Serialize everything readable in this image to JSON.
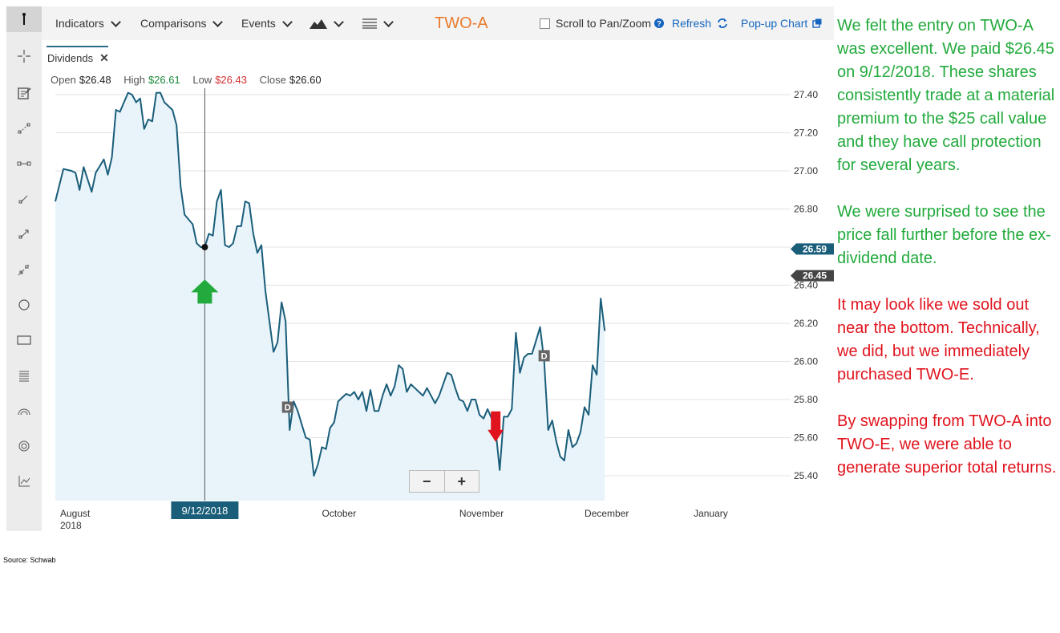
{
  "toolbar": {
    "indicators": "Indicators",
    "comparisons": "Comparisons",
    "events": "Events",
    "ticker": "TWO-A",
    "scroll_label": "Scroll to Pan/Zoom",
    "refresh": "Refresh",
    "popup": "Pop-up Chart"
  },
  "tab": {
    "label": "Dividends",
    "close": "✕"
  },
  "ohlc": {
    "open_label": "Open",
    "open": "$26.48",
    "high_label": "High",
    "high": "$26.61",
    "low_label": "Low",
    "low": "$26.43",
    "close_label": "Close",
    "close": "$26.60"
  },
  "zoom": {
    "minus": "−",
    "plus": "+"
  },
  "commentary": {
    "p1": "We felt the entry on TWO-A was excellent. We paid $26.45 on 9/12/2018. These shares consistently trade at a material premium to the $25 call value and they have call protection for several years.",
    "p2": "We were surprised to see the price fall further before the ex-dividend date.",
    "p3": "It may look like we sold out near the bottom. Technically, we did, but we immediately purchased TWO-E.",
    "p4": "By swapping from TWO-A into TWO-E, we were able to generate superior total returns."
  },
  "source": "Source: Schwab",
  "colors": {
    "line": "#1a5e7a",
    "fill": "#e8f4fa",
    "buy_arrow": "#22aa3c",
    "sell_arrow": "#e0141e",
    "ticker": "#e97b2c"
  },
  "chart_data": {
    "type": "area",
    "ylim": [
      25.25,
      27.5
    ],
    "yticks": [
      27.4,
      27.2,
      27.0,
      26.8,
      26.6,
      26.4,
      26.2,
      26.0,
      25.8,
      25.6,
      25.4
    ],
    "ytick_labels": [
      "27.40",
      "27.20",
      "27.00",
      "26.80",
      "",
      "26.40",
      "26.20",
      "26.00",
      "25.80",
      "25.60",
      "25.40"
    ],
    "xlim": [
      0,
      182
    ],
    "xtick_labels": [
      {
        "label": "August",
        "sub": "2018",
        "x": 0
      },
      {
        "label": "October",
        "sub": "",
        "x": 66
      },
      {
        "label": "November",
        "sub": "",
        "x": 100
      },
      {
        "label": "December",
        "sub": "",
        "x": 131
      },
      {
        "label": "January",
        "sub": "",
        "x": 158
      }
    ],
    "series": [
      {
        "values": [
          [
            0,
            26.84
          ],
          [
            2,
            27.01
          ],
          [
            4,
            27.0
          ],
          [
            5,
            26.99
          ],
          [
            6,
            26.9
          ],
          [
            7,
            27.02
          ],
          [
            9,
            26.89
          ],
          [
            10,
            26.99
          ],
          [
            12,
            27.06
          ],
          [
            13,
            26.98
          ],
          [
            14,
            27.07
          ],
          [
            15,
            27.32
          ],
          [
            16,
            27.31
          ],
          [
            18,
            27.41
          ],
          [
            19,
            27.4
          ],
          [
            20,
            27.36
          ],
          [
            21,
            27.38
          ],
          [
            22,
            27.22
          ],
          [
            23,
            27.27
          ],
          [
            24,
            27.26
          ],
          [
            25,
            27.41
          ],
          [
            26,
            27.41
          ],
          [
            27,
            27.36
          ],
          [
            29,
            27.32
          ],
          [
            30,
            27.24
          ],
          [
            31,
            26.92
          ],
          [
            32,
            26.77
          ],
          [
            34,
            26.72
          ],
          [
            35,
            26.62
          ],
          [
            36,
            26.6
          ],
          [
            37,
            26.6
          ],
          [
            38,
            26.67
          ],
          [
            39,
            26.66
          ],
          [
            40,
            26.84
          ],
          [
            41,
            26.9
          ],
          [
            42,
            26.61
          ],
          [
            43,
            26.6
          ],
          [
            44,
            26.62
          ],
          [
            45,
            26.71
          ],
          [
            46,
            26.71
          ],
          [
            47,
            26.84
          ],
          [
            48,
            26.83
          ],
          [
            49,
            26.67
          ],
          [
            50,
            26.57
          ],
          [
            51,
            26.61
          ],
          [
            52,
            26.37
          ],
          [
            54,
            26.05
          ],
          [
            55,
            26.1
          ],
          [
            56,
            26.31
          ],
          [
            57,
            26.21
          ],
          [
            58,
            25.64
          ],
          [
            59,
            25.79
          ],
          [
            60,
            25.74
          ],
          [
            61,
            25.67
          ],
          [
            62,
            25.6
          ],
          [
            63,
            25.59
          ],
          [
            64,
            25.4
          ],
          [
            65,
            25.46
          ],
          [
            66,
            25.55
          ],
          [
            67,
            25.54
          ],
          [
            68,
            25.65
          ],
          [
            69,
            25.68
          ],
          [
            70,
            25.79
          ],
          [
            71,
            25.81
          ],
          [
            72,
            25.83
          ],
          [
            73,
            25.82
          ],
          [
            74,
            25.84
          ],
          [
            75,
            25.8
          ],
          [
            76,
            25.84
          ],
          [
            77,
            25.74
          ],
          [
            78,
            25.85
          ],
          [
            79,
            25.74
          ],
          [
            80,
            25.74
          ],
          [
            81,
            25.82
          ],
          [
            82,
            25.88
          ],
          [
            83,
            25.82
          ],
          [
            84,
            25.87
          ],
          [
            85,
            25.98
          ],
          [
            86,
            25.96
          ],
          [
            87,
            25.84
          ],
          [
            88,
            25.88
          ],
          [
            89,
            25.86
          ],
          [
            90,
            25.84
          ],
          [
            91,
            25.82
          ],
          [
            92,
            25.86
          ],
          [
            93,
            25.82
          ],
          [
            94,
            25.78
          ],
          [
            95,
            25.82
          ],
          [
            96,
            25.88
          ],
          [
            97,
            25.94
          ],
          [
            98,
            25.93
          ],
          [
            99,
            25.86
          ],
          [
            100,
            25.8
          ],
          [
            101,
            25.79
          ],
          [
            102,
            25.74
          ],
          [
            103,
            25.8
          ],
          [
            104,
            25.8
          ],
          [
            105,
            25.72
          ],
          [
            106,
            25.7
          ],
          [
            107,
            25.75
          ],
          [
            108,
            25.7
          ],
          [
            109,
            25.64
          ],
          [
            110,
            25.43
          ],
          [
            111,
            25.71
          ],
          [
            112,
            25.71
          ],
          [
            113,
            25.75
          ],
          [
            114,
            26.15
          ],
          [
            115,
            25.94
          ],
          [
            116,
            26.02
          ],
          [
            117,
            26.04
          ],
          [
            118,
            26.04
          ],
          [
            119,
            26.11
          ],
          [
            120,
            26.18
          ],
          [
            121,
            26.0
          ],
          [
            122,
            25.64
          ],
          [
            123,
            25.69
          ],
          [
            124,
            25.58
          ],
          [
            125,
            25.5
          ],
          [
            126,
            25.48
          ],
          [
            127,
            25.64
          ],
          [
            128,
            25.55
          ],
          [
            129,
            25.57
          ],
          [
            130,
            25.63
          ],
          [
            131,
            25.76
          ],
          [
            132,
            25.72
          ],
          [
            133,
            25.98
          ],
          [
            134,
            25.93
          ],
          [
            135,
            26.33
          ],
          [
            136,
            26.16
          ]
        ]
      }
    ],
    "annotations": [
      {
        "type": "crosshair",
        "x": 37,
        "label": "9/12/2018",
        "value": 26.6
      },
      {
        "type": "buy-arrow",
        "x": 37,
        "y": 26.43
      },
      {
        "type": "sell-arrow",
        "x": 109,
        "y": 25.62
      },
      {
        "type": "dividend-marker",
        "x": 57.5,
        "y": 25.76,
        "label": "D"
      },
      {
        "type": "dividend-marker",
        "x": 121,
        "y": 26.03,
        "label": "D"
      }
    ],
    "price_tags": [
      {
        "value": 26.59,
        "label": "26.59",
        "color": "#1a5e7a"
      },
      {
        "value": 26.45,
        "label": "26.45",
        "color": "#444444"
      }
    ]
  }
}
